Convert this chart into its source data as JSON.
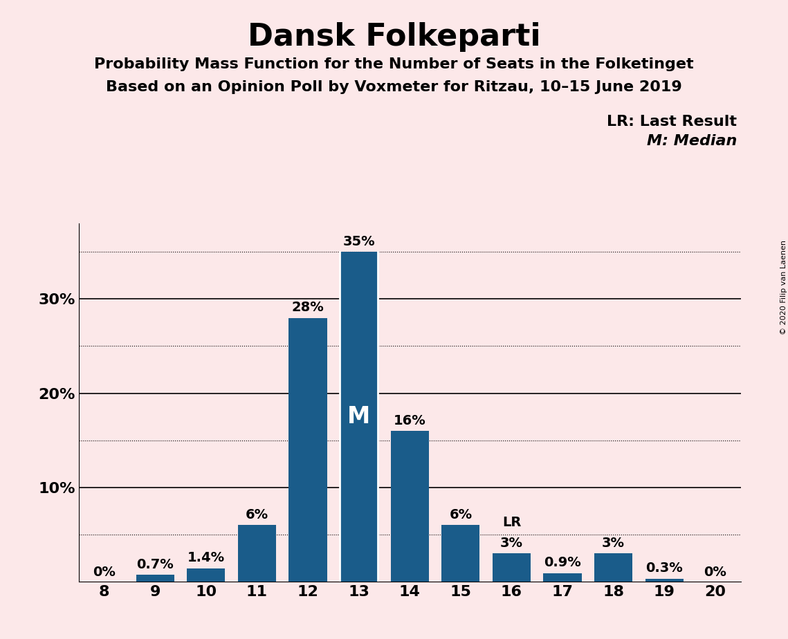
{
  "title": "Dansk Folkeparti",
  "subtitle1": "Probability Mass Function for the Number of Seats in the Folketinget",
  "subtitle2": "Based on an Opinion Poll by Voxmeter for Ritzau, 10–15 June 2019",
  "copyright": "© 2020 Filip van Laenen",
  "categories": [
    8,
    9,
    10,
    11,
    12,
    13,
    14,
    15,
    16,
    17,
    18,
    19,
    20
  ],
  "values": [
    0.0,
    0.7,
    1.4,
    6.0,
    28.0,
    35.0,
    16.0,
    6.0,
    3.0,
    0.9,
    3.0,
    0.3,
    0.0
  ],
  "labels": [
    "0%",
    "0.7%",
    "1.4%",
    "6%",
    "28%",
    "35%",
    "16%",
    "6%",
    "3%",
    "0.9%",
    "3%",
    "0.3%",
    "0%"
  ],
  "bar_color": "#1a5c8a",
  "background_color": "#fce8e9",
  "median_bar": 13,
  "lr_bar": 16,
  "ylim": [
    0,
    38
  ],
  "major_yticks": [
    10,
    20,
    30
  ],
  "major_ytick_labels": [
    "10%",
    "20%",
    "30%"
  ],
  "dotted_yticks": [
    5,
    15,
    25,
    35
  ],
  "legend_lr": "LR: Last Result",
  "legend_m": "M: Median",
  "title_fontsize": 32,
  "subtitle_fontsize": 16,
  "label_fontsize": 14,
  "tick_fontsize": 16,
  "legend_fontsize": 16,
  "bar_width": 0.75
}
